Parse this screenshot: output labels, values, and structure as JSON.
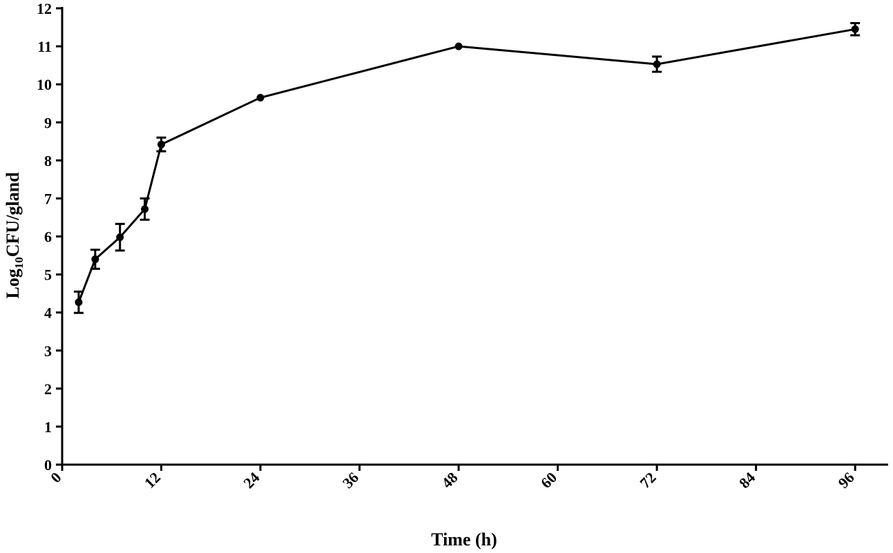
{
  "chart_data": {
    "type": "line",
    "title": "",
    "xlabel": "Time (h)",
    "ylabel": {
      "prefix": "Log",
      "subscript": "10",
      "suffix": "CFU/gland"
    },
    "xlim": [
      0,
      100
    ],
    "ylim": [
      0,
      12
    ],
    "x_ticks": [
      0,
      12,
      24,
      36,
      48,
      60,
      72,
      84,
      96
    ],
    "y_ticks": [
      0,
      1,
      2,
      3,
      4,
      5,
      6,
      7,
      8,
      9,
      10,
      11,
      12
    ],
    "grid": false,
    "series": [
      {
        "color": "#000000",
        "x": [
          2,
          4,
          7,
          10,
          12,
          24,
          48,
          72,
          96
        ],
        "y": [
          4.27,
          5.4,
          5.98,
          6.72,
          8.42,
          9.65,
          11.0,
          10.53,
          11.45
        ],
        "error": [
          0.28,
          0.25,
          0.35,
          0.28,
          0.18,
          0.0,
          0.0,
          0.2,
          0.16
        ]
      }
    ]
  }
}
